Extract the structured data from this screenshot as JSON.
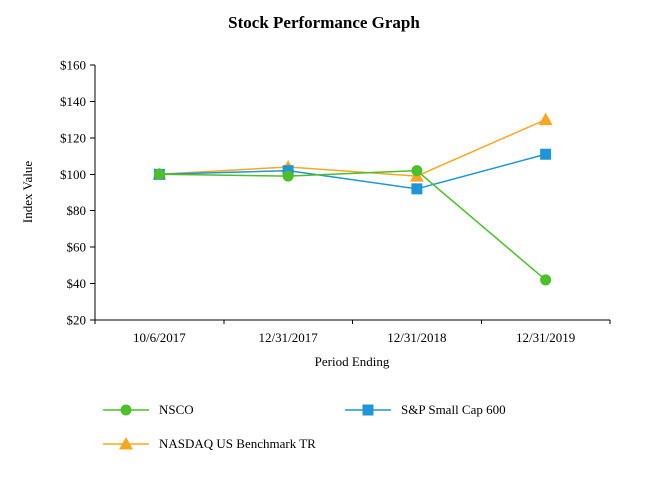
{
  "chart_data": {
    "type": "line",
    "title": "Stock Performance Graph",
    "xlabel": "Period Ending",
    "ylabel": "Index Value",
    "categories": [
      "10/6/2017",
      "12/31/2017",
      "12/31/2018",
      "12/31/2019"
    ],
    "series": [
      {
        "name": "NSCO",
        "marker": "circle",
        "color": "#4cbf2a",
        "values": [
          100,
          99,
          102,
          42
        ]
      },
      {
        "name": "S&P Small Cap 600",
        "marker": "square",
        "color": "#1e96d6",
        "values": [
          100,
          102,
          92,
          111
        ]
      },
      {
        "name": "NASDAQ US Benchmark TR",
        "marker": "triangle",
        "color": "#f7a823",
        "values": [
          100,
          104,
          99,
          130
        ]
      }
    ],
    "ylim": [
      20,
      160
    ],
    "y_ticks": [
      20,
      40,
      60,
      80,
      100,
      120,
      140,
      160
    ],
    "y_tick_prefix": "$",
    "grid": false,
    "legend_position": "bottom",
    "axis_color": "#000000"
  }
}
